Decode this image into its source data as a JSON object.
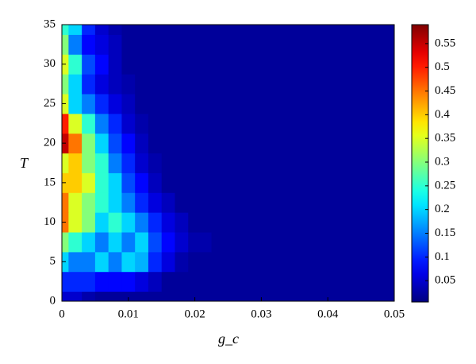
{
  "chart_data": {
    "type": "contour",
    "xlabel": "g_c",
    "ylabel": "T",
    "x": [
      0,
      0.002,
      0.004,
      0.006,
      0.008,
      0.01,
      0.012,
      0.014,
      0.016,
      0.018,
      0.02,
      0.025,
      0.03,
      0.04,
      0.05
    ],
    "y": [
      0,
      2.5,
      5,
      7.5,
      10,
      12.5,
      15,
      17.5,
      20,
      22.5,
      25,
      27.5,
      30,
      32.5,
      35
    ],
    "z": [
      [
        0.05,
        0.05,
        0.03,
        0.02,
        0.02,
        0.02,
        0.02,
        0.02,
        0.02,
        0.02,
        0.02,
        0.02,
        0.02,
        0.02,
        0.02
      ],
      [
        0.1,
        0.1,
        0.1,
        0.08,
        0.08,
        0.08,
        0.06,
        0.04,
        0.02,
        0.02,
        0.02,
        0.02,
        0.02,
        0.02,
        0.02
      ],
      [
        0.2,
        0.15,
        0.15,
        0.2,
        0.15,
        0.2,
        0.18,
        0.1,
        0.06,
        0.03,
        0.02,
        0.02,
        0.02,
        0.02,
        0.02
      ],
      [
        0.3,
        0.25,
        0.2,
        0.15,
        0.2,
        0.15,
        0.2,
        0.12,
        0.08,
        0.05,
        0.03,
        0.02,
        0.02,
        0.02,
        0.02
      ],
      [
        0.45,
        0.35,
        0.3,
        0.2,
        0.25,
        0.2,
        0.15,
        0.1,
        0.06,
        0.04,
        0.02,
        0.02,
        0.02,
        0.02,
        0.02
      ],
      [
        0.45,
        0.35,
        0.3,
        0.25,
        0.2,
        0.15,
        0.1,
        0.06,
        0.04,
        0.02,
        0.02,
        0.02,
        0.02,
        0.02,
        0.02
      ],
      [
        0.4,
        0.4,
        0.35,
        0.25,
        0.2,
        0.12,
        0.08,
        0.04,
        0.02,
        0.02,
        0.02,
        0.02,
        0.02,
        0.02,
        0.02
      ],
      [
        0.35,
        0.4,
        0.3,
        0.25,
        0.15,
        0.1,
        0.05,
        0.03,
        0.02,
        0.02,
        0.02,
        0.02,
        0.02,
        0.02,
        0.02
      ],
      [
        0.55,
        0.45,
        0.3,
        0.2,
        0.12,
        0.08,
        0.04,
        0.02,
        0.02,
        0.02,
        0.02,
        0.02,
        0.02,
        0.02,
        0.02
      ],
      [
        0.5,
        0.35,
        0.25,
        0.15,
        0.1,
        0.05,
        0.03,
        0.02,
        0.02,
        0.02,
        0.02,
        0.02,
        0.02,
        0.02,
        0.02
      ],
      [
        0.35,
        0.2,
        0.15,
        0.1,
        0.06,
        0.04,
        0.02,
        0.02,
        0.02,
        0.02,
        0.02,
        0.02,
        0.02,
        0.02,
        0.02
      ],
      [
        0.3,
        0.2,
        0.1,
        0.06,
        0.04,
        0.03,
        0.02,
        0.02,
        0.02,
        0.02,
        0.02,
        0.02,
        0.02,
        0.02,
        0.02
      ],
      [
        0.35,
        0.25,
        0.12,
        0.08,
        0.04,
        0.02,
        0.02,
        0.02,
        0.02,
        0.02,
        0.02,
        0.02,
        0.02,
        0.02,
        0.02
      ],
      [
        0.3,
        0.15,
        0.08,
        0.06,
        0.04,
        0.02,
        0.02,
        0.02,
        0.02,
        0.02,
        0.02,
        0.02,
        0.02,
        0.02,
        0.02
      ],
      [
        0.25,
        0.2,
        0.1,
        0.05,
        0.03,
        0.02,
        0.02,
        0.02,
        0.02,
        0.02,
        0.02,
        0.02,
        0.02,
        0.02,
        0.02
      ]
    ],
    "xlim": [
      0,
      0.05
    ],
    "xticks": [
      0,
      0.01,
      0.02,
      0.03,
      0.04,
      0.05
    ],
    "ylim": [
      0,
      35
    ],
    "yticks": [
      0,
      5,
      10,
      15,
      20,
      25,
      30,
      35
    ],
    "colormap": "jet",
    "zlim": [
      0.005,
      0.59
    ],
    "colorbar_ticks": [
      0.05,
      0.1,
      0.15,
      0.2,
      0.25,
      0.3,
      0.35,
      0.4,
      0.45,
      0.5,
      0.55
    ]
  }
}
